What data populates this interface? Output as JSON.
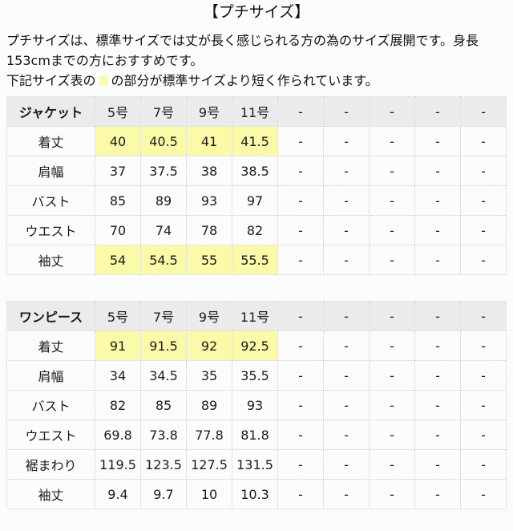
{
  "page": {
    "title": "【プチサイズ】",
    "description": "プチサイズは、標準サイズでは丈が長く感じられる方の為のサイズ展開です。身長153cmまでの方におすすめです。",
    "legend_before": "下記サイズ表の",
    "legend_swatch": "highlight-yellow-square",
    "legend_after": "の部分が標準サイズより短く作られています。"
  },
  "colors": {
    "highlight": "#fafaa8",
    "header_bg": "#ebebeb",
    "border": "#cccccc",
    "page_bg": "#fcfcfc",
    "text": "#1b1b1b"
  },
  "tables": [
    {
      "name": "ジャケット",
      "columns": [
        "5号",
        "7号",
        "9号",
        "11号",
        "-",
        "-",
        "-",
        "-",
        "-"
      ],
      "rows": [
        {
          "label": "着丈",
          "highlighted": true,
          "values": [
            "40",
            "40.5",
            "41",
            "41.5",
            "-",
            "-",
            "-",
            "-",
            "-"
          ]
        },
        {
          "label": "肩幅",
          "highlighted": false,
          "values": [
            "37",
            "37.5",
            "38",
            "38.5",
            "-",
            "-",
            "-",
            "-",
            "-"
          ]
        },
        {
          "label": "バスト",
          "highlighted": false,
          "values": [
            "85",
            "89",
            "93",
            "97",
            "-",
            "-",
            "-",
            "-",
            "-"
          ]
        },
        {
          "label": "ウエスト",
          "highlighted": false,
          "values": [
            "70",
            "74",
            "78",
            "82",
            "-",
            "-",
            "-",
            "-",
            "-"
          ]
        },
        {
          "label": "袖丈",
          "highlighted": true,
          "values": [
            "54",
            "54.5",
            "55",
            "55.5",
            "-",
            "-",
            "-",
            "-",
            "-"
          ]
        }
      ]
    },
    {
      "name": "ワンピース",
      "columns": [
        "5号",
        "7号",
        "9号",
        "11号",
        "-",
        "-",
        "-",
        "-",
        "-"
      ],
      "rows": [
        {
          "label": "着丈",
          "highlighted": true,
          "values": [
            "91",
            "91.5",
            "92",
            "92.5",
            "-",
            "-",
            "-",
            "-",
            "-"
          ]
        },
        {
          "label": "肩幅",
          "highlighted": false,
          "values": [
            "34",
            "34.5",
            "35",
            "35.5",
            "-",
            "-",
            "-",
            "-",
            "-"
          ]
        },
        {
          "label": "バスト",
          "highlighted": false,
          "values": [
            "82",
            "85",
            "89",
            "93",
            "-",
            "-",
            "-",
            "-",
            "-"
          ]
        },
        {
          "label": "ウエスト",
          "highlighted": false,
          "values": [
            "69.8",
            "73.8",
            "77.8",
            "81.8",
            "-",
            "-",
            "-",
            "-",
            "-"
          ]
        },
        {
          "label": "裾まわり",
          "highlighted": false,
          "values": [
            "119.5",
            "123.5",
            "127.5",
            "131.5",
            "-",
            "-",
            "-",
            "-",
            "-"
          ]
        },
        {
          "label": "袖丈",
          "highlighted": false,
          "values": [
            "9.4",
            "9.7",
            "10",
            "10.3",
            "-",
            "-",
            "-",
            "-",
            "-"
          ]
        }
      ]
    }
  ]
}
